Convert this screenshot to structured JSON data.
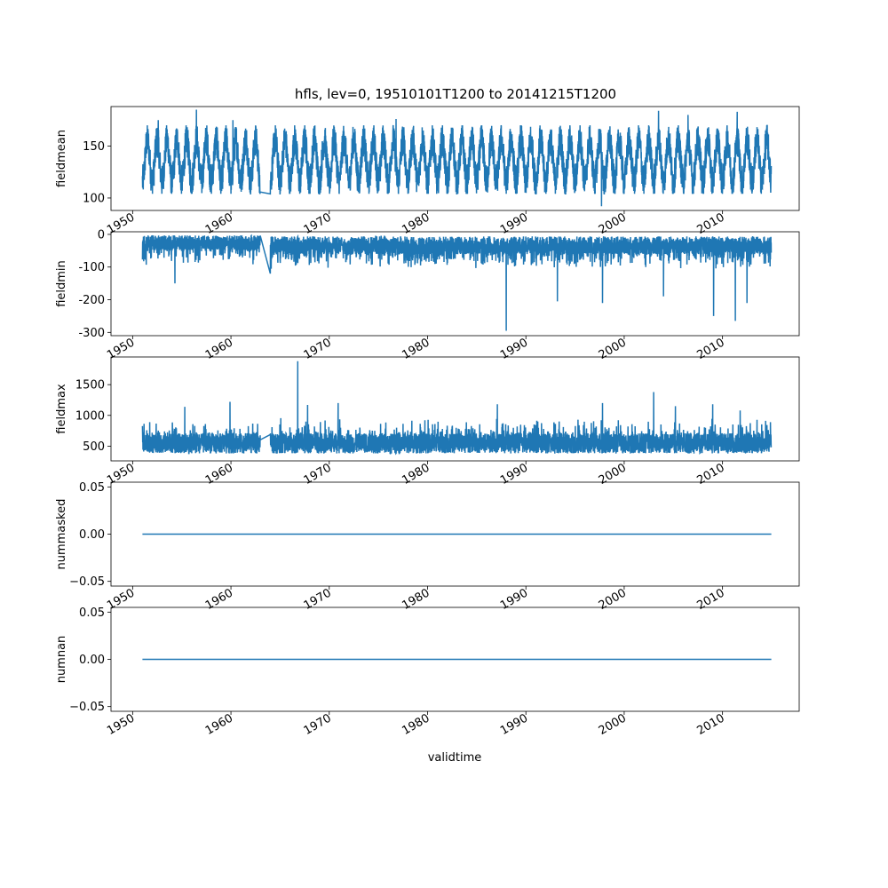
{
  "title": "hfls, lev=0, 19510101T1200 to 20141215T1200",
  "xlabel": "validtime",
  "line_color": "#1f77b4",
  "chart_data": [
    {
      "type": "line",
      "ylabel": "fieldmean",
      "xlim": [
        1947.8,
        2017.8
      ],
      "ylim": [
        88,
        188
      ],
      "yticks": [
        100,
        150
      ],
      "x_tick_labels": [
        "1950",
        "1960",
        "1970",
        "1980",
        "1990",
        "2000",
        "2010"
      ],
      "series": [
        {
          "x_range": [
            1951.0,
            2014.96
          ],
          "gap": [
            1963.0,
            1964.0
          ],
          "annual_cycle": {
            "min": 108,
            "max": 165
          },
          "value_range": [
            92,
            185
          ],
          "spikes": [
            [
              1952.6,
              175
            ],
            [
              1956.5,
              185
            ],
            [
              1960.2,
              175
            ],
            [
              1976.8,
              176
            ],
            [
              1997.7,
              92
            ],
            [
              2003.5,
              184
            ],
            [
              2006.5,
              180
            ],
            [
              2011.5,
              183
            ],
            [
              1962.9,
              105
            ]
          ]
        }
      ]
    },
    {
      "type": "line",
      "ylabel": "fieldmin",
      "xlim": [
        1947.8,
        2017.8
      ],
      "ylim": [
        -310,
        8
      ],
      "yticks": [
        -300,
        -200,
        -100,
        0
      ],
      "x_tick_labels": [
        "1950",
        "1960",
        "1970",
        "1980",
        "1990",
        "2000",
        "2010"
      ],
      "series": [
        {
          "x_range": [
            1951.0,
            2014.96
          ],
          "gap": [
            1963.0,
            1964.0
          ],
          "value_range": [
            -295,
            0
          ],
          "spikes": [
            [
              1954.3,
              -150
            ],
            [
              1963.9,
              -120
            ],
            [
              1988.0,
              -295
            ],
            [
              2009.1,
              -250
            ],
            [
              2011.3,
              -265
            ],
            [
              1993.2,
              -205
            ],
            [
              1997.8,
              -210
            ],
            [
              2004.0,
              -190
            ],
            [
              2012.5,
              -210
            ]
          ]
        }
      ]
    },
    {
      "type": "line",
      "ylabel": "fieldmax",
      "xlim": [
        1947.8,
        2017.8
      ],
      "ylim": [
        260,
        1950
      ],
      "yticks": [
        500,
        1000,
        1500
      ],
      "x_tick_labels": [
        "1950",
        "1960",
        "1970",
        "1980",
        "1990",
        "2000",
        "2010"
      ],
      "series": [
        {
          "x_range": [
            1951.0,
            2014.96
          ],
          "gap": [
            1963.0,
            1964.0
          ],
          "value_range": [
            330,
            1880
          ],
          "spikes": [
            [
              1966.8,
              1880
            ],
            [
              2003.0,
              1380
            ],
            [
              1959.9,
              1220
            ],
            [
              1955.3,
              1140
            ],
            [
              1987.1,
              1180
            ],
            [
              1997.8,
              1200
            ],
            [
              1967.8,
              1170
            ],
            [
              1970.9,
              1200
            ],
            [
              2005.2,
              1150
            ],
            [
              2009.0,
              1180
            ],
            [
              2011.8,
              1080
            ]
          ]
        }
      ]
    },
    {
      "type": "line",
      "ylabel": "nummasked",
      "xlim": [
        1947.8,
        2017.8
      ],
      "ylim": [
        -0.055,
        0.055
      ],
      "yticks": [
        -0.05,
        0.0,
        0.05
      ],
      "ytick_labels": [
        "−0.05",
        "0.00",
        "0.05"
      ],
      "x_tick_labels": [
        "1950",
        "1960",
        "1970",
        "1980",
        "1990",
        "2000",
        "2010"
      ],
      "series": [
        {
          "x": [
            1951.0,
            2014.96
          ],
          "y": [
            0,
            0
          ]
        }
      ]
    },
    {
      "type": "line",
      "ylabel": "numnan",
      "xlim": [
        1947.8,
        2017.8
      ],
      "ylim": [
        -0.055,
        0.055
      ],
      "yticks": [
        -0.05,
        0.0,
        0.05
      ],
      "ytick_labels": [
        "−0.05",
        "0.00",
        "0.05"
      ],
      "x_tick_labels": [
        "1950",
        "1960",
        "1970",
        "1980",
        "1990",
        "2000",
        "2010"
      ],
      "series": [
        {
          "x": [
            1951.0,
            2014.96
          ],
          "y": [
            0,
            0
          ]
        }
      ]
    }
  ]
}
